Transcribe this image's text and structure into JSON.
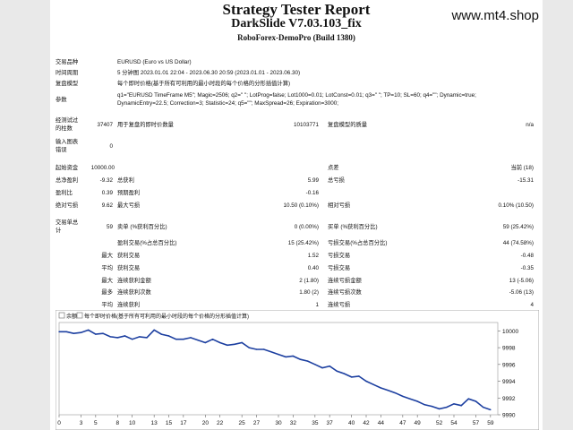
{
  "header": {
    "title": "Strategy Tester Report",
    "subtitle": "DarkSlide V7.03.103_fix",
    "broker": "RoboForex-DemoPro (Build 1380)",
    "site": "www.mt4.shop"
  },
  "info": {
    "symbol_label": "交易品种",
    "symbol_value": "EURUSD (Euro vs US Dollar)",
    "period_label": "时间周期",
    "period_value": "5 分钟图 2023.01.01 22:04 - 2023.06.30 20:59 (2023.01.01 - 2023.06.30)",
    "model_label": "复盘模型",
    "model_value": "每个即时价格(基于所有可利用的最小时段的每个价格的分形插值计算)",
    "params_label": "参数",
    "params_line1": "q1=\"EURUSD TimeFrame M5\"; Magic=2506; q2=\" \"; LotProg=false; Lot1000=0.01; LotConst=0.01; q3=\" \"; TP=10; SL=60; q4=\"\"; Dynamic=true;",
    "params_line2": "DynamicEntry=22.5; Correction=3; Statistic=24; q5=\"\"; MaxSpread=26; Expiration=3000;",
    "bars_label_1": "经测试过",
    "bars_label_2": "的柱数",
    "bars_value": "37407",
    "ticks_label": "用于复盘的即时价数量",
    "ticks_value": "10103771",
    "quality_label": "复盘模型的质量",
    "quality_value": "n/a",
    "errors_label_1": "输入图表",
    "errors_label_2": "错误",
    "errors_value": "0"
  },
  "stats": {
    "deposit_label": "起始资金",
    "deposit_value": "10000.00",
    "spread_label": "点差",
    "spread_value": "当前 (18)",
    "netprofit_label": "总净盈利",
    "netprofit_value": "-9.32",
    "grossprofit_label": "总获利",
    "grossprofit_value": "5.99",
    "grossloss_label": "总亏损",
    "grossloss_value": "-15.31",
    "pf_label": "盈利比",
    "pf_value": "0.39",
    "payoff_label": "预期盈利",
    "payoff_value": "-0.16",
    "absdd_label": "绝对亏损",
    "absdd_value": "9.62",
    "maxdd_label": "最大亏损",
    "maxdd_value": "10.50 (0.10%)",
    "reldd_label": "相对亏损",
    "reldd_value": "0.10% (10.50)",
    "trades_label_1": "交易单总",
    "trades_label_2": "计",
    "trades_value": "59",
    "short_label": "卖单 (%获利百分比)",
    "short_value": "0 (0.00%)",
    "long_label": "买单 (%获利百分比)",
    "long_value": "59 (25.42%)",
    "profit_trades_label": "盈利交易(%占总百分比)",
    "profit_trades_value": "15 (25.42%)",
    "loss_trades_label": "亏损交易(%占总百分比)",
    "loss_trades_value": "44 (74.58%)",
    "largest_label": "最大",
    "largest_profit_label": "获利交易",
    "largest_profit_value": "1.52",
    "largest_loss_label": "亏损交易",
    "largest_loss_value": "-0.48",
    "average_label": "平均",
    "average_profit_label": "获利交易",
    "average_profit_value": "0.40",
    "average_loss_label": "亏损交易",
    "average_loss_value": "-0.35",
    "maxcons_label": "最大",
    "maxcons_win_label": "连续获利金额",
    "maxcons_win_value": "2 (1.80)",
    "maxcons_loss_label": "连续亏损金额",
    "maxcons_loss_value": "13 (-5.06)",
    "most_label": "最多",
    "most_win_label": "连续获利次数",
    "most_win_value": "1.80 (2)",
    "most_loss_label": "连续亏损次数",
    "most_loss_value": "-5.06 (13)",
    "avgcons_label": "平均",
    "avgcons_win_label": "连续获利",
    "avgcons_win_value": "1",
    "avgcons_loss_label": "连续亏损",
    "avgcons_loss_value": "4"
  },
  "chart_data": {
    "type": "line",
    "legend_balance": "余额",
    "legend_tick": "每个即时价格(基于所有可利用的最小时段的每个价格的分形插值计算)",
    "ylim": [
      9990,
      10001
    ],
    "xlim": [
      0,
      60
    ],
    "yticks": [
      "10000",
      "9998",
      "9996",
      "9994",
      "9992",
      "9990"
    ],
    "ytick_values": [
      10000,
      9998,
      9996,
      9994,
      9992,
      9990
    ],
    "xticks": [
      "0",
      "3",
      "5",
      "8",
      "10",
      "13",
      "15",
      "17",
      "20",
      "22",
      "25",
      "27",
      "30",
      "32",
      "35",
      "37",
      "40",
      "42",
      "44",
      "47",
      "49",
      "52",
      "54",
      "57",
      "59"
    ],
    "x": [
      0,
      1,
      2,
      3,
      4,
      5,
      6,
      7,
      8,
      9,
      10,
      11,
      12,
      13,
      14,
      15,
      16,
      17,
      18,
      19,
      20,
      21,
      22,
      23,
      24,
      25,
      26,
      27,
      28,
      29,
      30,
      31,
      32,
      33,
      34,
      35,
      36,
      37,
      38,
      39,
      40,
      41,
      42,
      43,
      44,
      45,
      46,
      47,
      48,
      49,
      50,
      51,
      52,
      53,
      54,
      55,
      56,
      57,
      58,
      59
    ],
    "values": [
      9999.9,
      9999.9,
      9999.7,
      9999.8,
      10000.1,
      9999.6,
      9999.7,
      9999.3,
      9999.2,
      9999.4,
      9999.0,
      9999.3,
      9999.2,
      10000.1,
      9999.6,
      9999.4,
      9999.0,
      9999.0,
      9999.2,
      9998.9,
      9998.6,
      9999.0,
      9998.6,
      9998.3,
      9998.4,
      9998.6,
      9998.0,
      9997.8,
      9997.8,
      9997.5,
      9997.2,
      9996.9,
      9997.0,
      9996.6,
      9996.4,
      9996.0,
      9995.6,
      9995.8,
      9995.2,
      9994.9,
      9994.5,
      9994.6,
      9994.0,
      9993.6,
      9993.2,
      9992.9,
      9992.6,
      9992.2,
      9991.9,
      9991.6,
      9991.2,
      9991.0,
      9990.7,
      9990.9,
      9991.3,
      9991.1,
      9991.9,
      9991.6,
      9990.9,
      9990.6
    ],
    "colors": {
      "line": "#1c3fa0",
      "bg": "#ffffff",
      "grid": "#d0d0d0"
    }
  }
}
